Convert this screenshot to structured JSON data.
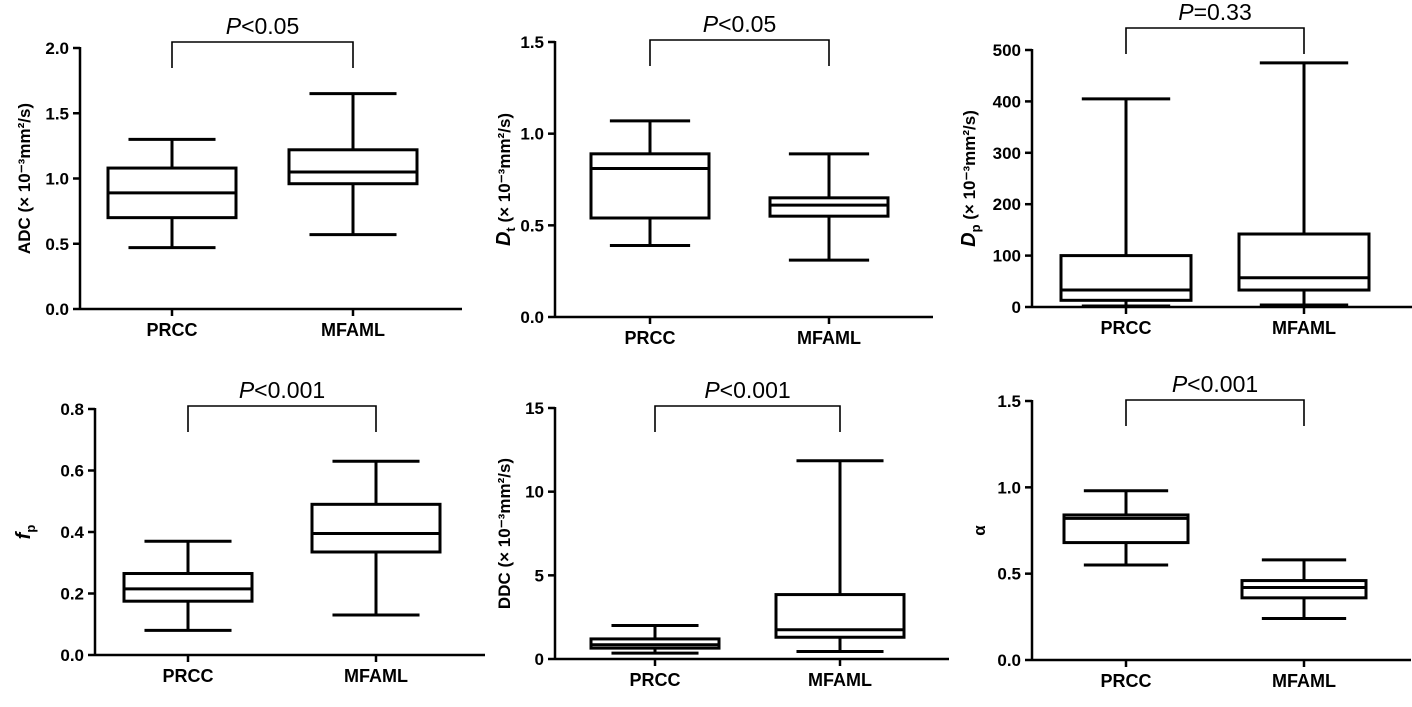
{
  "chart_data": [
    {
      "type": "boxplot",
      "categories": [
        "PRCC",
        "MFAML"
      ],
      "ylabel": "ADC (× 10⁻³mm²/s)",
      "ylim": [
        0,
        2.0
      ],
      "yticks": [
        "0.0",
        "0.5",
        "1.0",
        "1.5",
        "2.0"
      ],
      "yticks_values": [
        0,
        0.5,
        1.0,
        1.5,
        2.0
      ],
      "significance": "P<0.05",
      "boxes": [
        {
          "category": "PRCC",
          "min": 0.47,
          "q1": 0.7,
          "median": 0.89,
          "q3": 1.08,
          "max": 1.3
        },
        {
          "category": "MFAML",
          "min": 0.57,
          "q1": 0.96,
          "median": 1.05,
          "q3": 1.22,
          "max": 1.65
        }
      ]
    },
    {
      "type": "boxplot",
      "categories": [
        "PRCC",
        "MFAML"
      ],
      "ylabel": "Dt (× 10⁻³mm²/s)",
      "ylim": [
        0,
        1.5
      ],
      "yticks": [
        "0.0",
        "0.5",
        "1.0",
        "1.5"
      ],
      "yticks_values": [
        0,
        0.5,
        1.0,
        1.5
      ],
      "significance": "P<0.05",
      "boxes": [
        {
          "category": "PRCC",
          "min": 0.39,
          "q1": 0.54,
          "median": 0.81,
          "q3": 0.89,
          "max": 1.07
        },
        {
          "category": "MFAML",
          "min": 0.31,
          "q1": 0.55,
          "median": 0.61,
          "q3": 0.65,
          "max": 0.89
        }
      ]
    },
    {
      "type": "boxplot",
      "categories": [
        "PRCC",
        "MFAML"
      ],
      "ylabel": "Dp (× 10⁻³mm²/s)",
      "ylim": [
        0,
        500
      ],
      "yticks": [
        "0",
        "100",
        "200",
        "300",
        "400",
        "500"
      ],
      "yticks_values": [
        0,
        100,
        200,
        300,
        400,
        500
      ],
      "significance": "P=0.33",
      "boxes": [
        {
          "category": "PRCC",
          "min": 2,
          "q1": 13,
          "median": 33,
          "q3": 100,
          "max": 405
        },
        {
          "category": "MFAML",
          "min": 4,
          "q1": 33,
          "median": 57,
          "q3": 142,
          "max": 475
        }
      ]
    },
    {
      "type": "boxplot",
      "categories": [
        "PRCC",
        "MFAML"
      ],
      "ylabel": "fp",
      "ylim": [
        0,
        0.8
      ],
      "yticks": [
        "0.0",
        "0.2",
        "0.4",
        "0.6",
        "0.8"
      ],
      "yticks_values": [
        0,
        0.2,
        0.4,
        0.6,
        0.8
      ],
      "significance": "P<0.001",
      "boxes": [
        {
          "category": "PRCC",
          "min": 0.08,
          "q1": 0.175,
          "median": 0.215,
          "q3": 0.265,
          "max": 0.37
        },
        {
          "category": "MFAML",
          "min": 0.13,
          "q1": 0.335,
          "median": 0.395,
          "q3": 0.49,
          "max": 0.63
        }
      ]
    },
    {
      "type": "boxplot",
      "categories": [
        "PRCC",
        "MFAML"
      ],
      "ylabel": "DDC (× 10⁻³mm²/s)",
      "ylim": [
        0,
        15
      ],
      "yticks": [
        "0",
        "5",
        "10",
        "15"
      ],
      "yticks_values": [
        0,
        5,
        10,
        15
      ],
      "significance": "P<0.001",
      "boxes": [
        {
          "category": "PRCC",
          "min": 0.35,
          "q1": 0.65,
          "median": 0.85,
          "q3": 1.2,
          "max": 2.0
        },
        {
          "category": "MFAML",
          "min": 0.45,
          "q1": 1.3,
          "median": 1.75,
          "q3": 3.85,
          "max": 11.85
        }
      ]
    },
    {
      "type": "boxplot",
      "categories": [
        "PRCC",
        "MFAML"
      ],
      "ylabel": "α",
      "ylim": [
        0,
        1.5
      ],
      "yticks": [
        "0.0",
        "0.5",
        "1.0",
        "1.5"
      ],
      "yticks_values": [
        0,
        0.5,
        1.0,
        1.5
      ],
      "significance": "P<0.001",
      "boxes": [
        {
          "category": "PRCC",
          "min": 0.55,
          "q1": 0.68,
          "median": 0.82,
          "q3": 0.84,
          "max": 0.98
        },
        {
          "category": "MFAML",
          "min": 0.24,
          "q1": 0.36,
          "median": 0.42,
          "q3": 0.46,
          "max": 0.58
        }
      ]
    }
  ]
}
